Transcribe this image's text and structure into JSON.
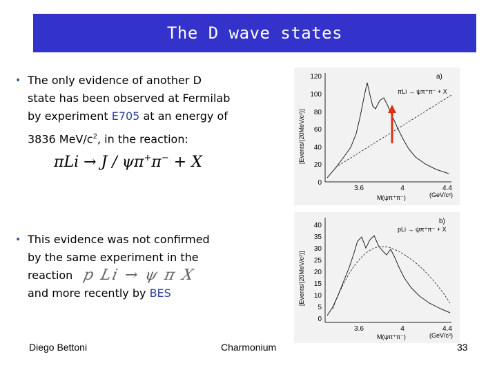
{
  "title": "The D wave states",
  "bullets": {
    "first": {
      "line1": "The only evidence of another D",
      "line2": "state has been observed at Fermilab",
      "line3_pre": "by experiment ",
      "experiment": "E705",
      "line3_post": " at an energy of",
      "line4_pre": "3836 MeV/c",
      "line4_sup": "2",
      "line4_post": ", in the reaction:"
    },
    "formula": {
      "lhs": "πLi",
      "arrow": "→",
      "jpsi": "J / ψ",
      "pi_plus": "π",
      "sup_plus": "+",
      "pi_minus": "π",
      "sup_minus": "−",
      "rest": "+ X"
    },
    "second": {
      "line1": "This evidence was not confirmed",
      "line2": "by the same experiment in the",
      "line3": "reaction",
      "handwritten_reaction": "p Li → ψ π X",
      "line4_pre": "and more recently by ",
      "bes": "BES"
    }
  },
  "plot_a": {
    "panel_label": "a)",
    "reaction": "πLi → ψπ⁺π⁻ + X",
    "ylabel": "[Events/(20MeV/c²)]",
    "y_ticks": [
      "120",
      "100",
      "80",
      "60",
      "40",
      "20",
      "0"
    ],
    "x_ticks": [
      "3.6",
      "4",
      "4.4"
    ],
    "xlabel": "M(ψπ⁺π⁻)",
    "xunit": "(GeV/c²)"
  },
  "plot_b": {
    "panel_label": "b)",
    "reaction": "pLi → ψπ⁺π⁻ + X",
    "ylabel": "[Events/(20MeV/c²)]",
    "y_ticks": [
      "40",
      "35",
      "30",
      "25",
      "20",
      "15",
      "10",
      "5",
      "0"
    ],
    "x_ticks": [
      "3.6",
      "4",
      "4.4"
    ],
    "xlabel": "M(ψπ⁺π⁻)",
    "xunit": "(GeV/c²)"
  },
  "footer": {
    "author": "Diego Bettoni",
    "topic": "Charmonium",
    "page": "33"
  },
  "colors": {
    "title_bg": "#3333cc",
    "title_text": "#ffffff",
    "highlight": "#2f3f9f",
    "arrow": "#e03010"
  }
}
